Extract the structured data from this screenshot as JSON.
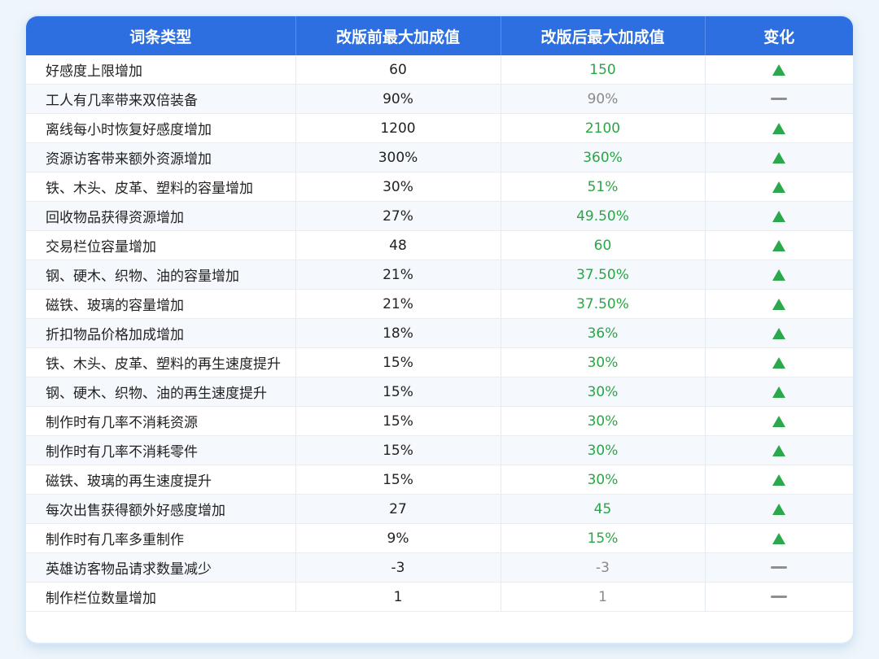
{
  "table": {
    "headers": [
      "词条类型",
      "改版前最大加成值",
      "改版后最大加成值",
      "变化"
    ],
    "rows": [
      {
        "name": "好感度上限增加",
        "before": "60",
        "after": "150",
        "change": "up"
      },
      {
        "name": "工人有几率带来双倍装备",
        "before": "90%",
        "after": "90%",
        "change": "same"
      },
      {
        "name": "离线每小时恢复好感度增加",
        "before": "1200",
        "after": "2100",
        "change": "up"
      },
      {
        "name": "资源访客带来额外资源增加",
        "before": "300%",
        "after": "360%",
        "change": "up"
      },
      {
        "name": "铁、木头、皮革、塑料的容量增加",
        "before": "30%",
        "after": "51%",
        "change": "up"
      },
      {
        "name": "回收物品获得资源增加",
        "before": "27%",
        "after": "49.50%",
        "change": "up"
      },
      {
        "name": "交易栏位容量增加",
        "before": "48",
        "after": "60",
        "change": "up"
      },
      {
        "name": "钢、硬木、织物、油的容量增加",
        "before": "21%",
        "after": "37.50%",
        "change": "up"
      },
      {
        "name": "磁铁、玻璃的容量增加",
        "before": "21%",
        "after": "37.50%",
        "change": "up"
      },
      {
        "name": "折扣物品价格加成增加",
        "before": "18%",
        "after": "36%",
        "change": "up"
      },
      {
        "name": "铁、木头、皮革、塑料的再生速度提升",
        "before": "15%",
        "after": "30%",
        "change": "up"
      },
      {
        "name": "钢、硬木、织物、油的再生速度提升",
        "before": "15%",
        "after": "30%",
        "change": "up"
      },
      {
        "name": "制作时有几率不消耗资源",
        "before": "15%",
        "after": "30%",
        "change": "up"
      },
      {
        "name": "制作时有几率不消耗零件",
        "before": "15%",
        "after": "30%",
        "change": "up"
      },
      {
        "name": "磁铁、玻璃的再生速度提升",
        "before": "15%",
        "after": "30%",
        "change": "up"
      },
      {
        "name": "每次出售获得额外好感度增加",
        "before": "27",
        "after": "45",
        "change": "up"
      },
      {
        "name": "制作时有几率多重制作",
        "before": "9%",
        "after": "15%",
        "change": "up"
      },
      {
        "name": "英雄访客物品请求数量减少",
        "before": "-3",
        "after": "-3",
        "change": "same"
      },
      {
        "name": "制作栏位数量增加",
        "before": "1",
        "after": "1",
        "change": "same"
      }
    ]
  },
  "icons": {
    "up": "triangle-up-icon",
    "same": "dash-icon"
  },
  "colors": {
    "header_bg": "#2d6fe0",
    "increase_text": "#28a745",
    "unchanged_text": "#8a8a8a",
    "up_icon": "#2aa84a",
    "dash_icon": "#8f8f8f"
  }
}
